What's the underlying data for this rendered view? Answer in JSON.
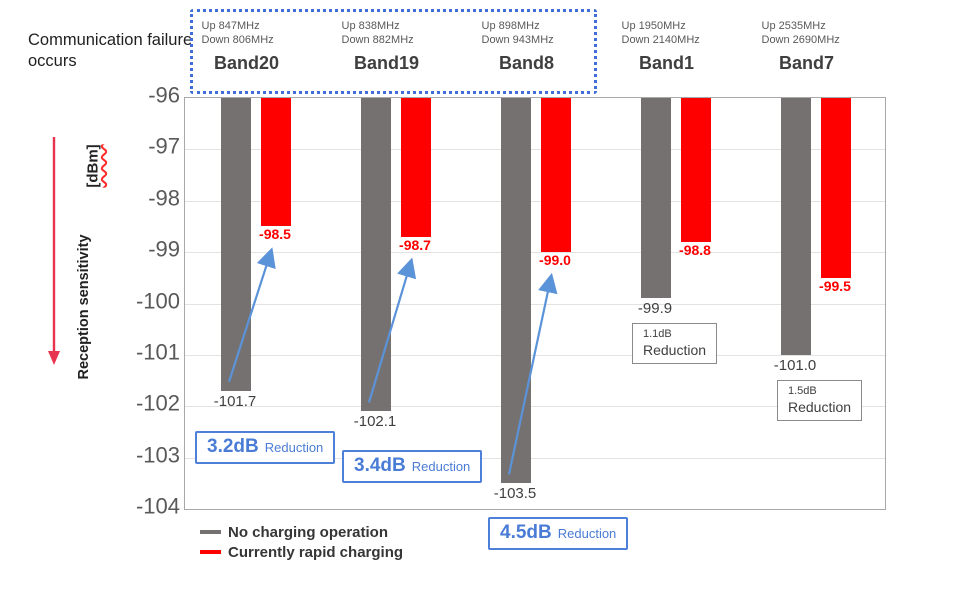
{
  "annotation": "Communication failure occurs",
  "y_axis": {
    "title": "Reception sensitivity",
    "unit": "[dBm]"
  },
  "legend": {
    "items": [
      {
        "label": "No charging operation",
        "color": "#767171"
      },
      {
        "label": "Currently rapid charging",
        "color": "#fe0000"
      }
    ]
  },
  "colors": {
    "no_charging": "#767171",
    "rapid_charging": "#fe0000",
    "accent_blue": "#4a7cd6",
    "arrow_blue": "#5b93d8",
    "highlight_border": "#3e6ed6",
    "red_arrow": "#e8354f"
  },
  "chart_data": {
    "type": "bar",
    "title": "",
    "xlabel": "",
    "ylabel": "Reception sensitivity [dBm]",
    "ylim": [
      -104,
      -96
    ],
    "yticks": [
      -96,
      -97,
      -98,
      -99,
      -100,
      -101,
      -102,
      -103,
      -104
    ],
    "grid": true,
    "legend_position": "bottom-left",
    "series_names": [
      "No charging operation",
      "Currently rapid charging"
    ],
    "groups": [
      {
        "band": "Band20",
        "uplink": "Up 847MHz",
        "downlink": "Down 806MHz",
        "no_charging": -101.7,
        "rapid_charging": -98.5,
        "reduction_value": "3.2dB",
        "reduction_word": "Reduction",
        "style": "blue",
        "highlighted": true
      },
      {
        "band": "Band19",
        "uplink": "Up 838MHz",
        "downlink": "Down 882MHz",
        "no_charging": -102.1,
        "rapid_charging": -98.7,
        "reduction_value": "3.4dB",
        "reduction_word": "Reduction",
        "style": "blue",
        "highlighted": true
      },
      {
        "band": "Band8",
        "uplink": "Up 898MHz",
        "downlink": "Down 943MHz",
        "no_charging": -103.5,
        "rapid_charging": -99.0,
        "reduction_value": "4.5dB",
        "reduction_word": "Reduction",
        "style": "blue",
        "highlighted": true
      },
      {
        "band": "Band1",
        "uplink": "Up 1950MHz",
        "downlink": "Down 2140MHz",
        "no_charging": -99.9,
        "rapid_charging": -98.8,
        "reduction_value": "1.1dB",
        "reduction_word": "Reduction",
        "style": "gray",
        "highlighted": false
      },
      {
        "band": "Band7",
        "uplink": "Up 2535MHz",
        "downlink": "Down 2690MHz",
        "no_charging": -101.0,
        "rapid_charging": -99.5,
        "reduction_value": "1.5dB",
        "reduction_word": "Reduction",
        "style": "gray",
        "highlighted": false
      }
    ]
  }
}
